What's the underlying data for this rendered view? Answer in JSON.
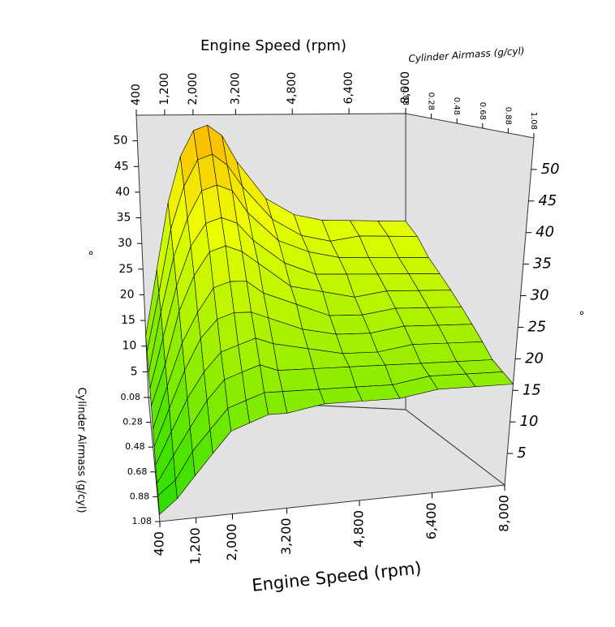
{
  "chart_data": {
    "type": "surface",
    "x_label": "Engine Speed (rpm)",
    "y_label": "Cylinder Airmass (g/cyl)",
    "z_label": "°",
    "x": [
      400,
      800,
      1200,
      1600,
      2000,
      2400,
      2800,
      3200,
      4000,
      4800,
      5600,
      6400,
      7200,
      8000
    ],
    "y": [
      0.08,
      0.18,
      0.28,
      0.38,
      0.48,
      0.58,
      0.68,
      0.78,
      0.88,
      0.98,
      1.08
    ],
    "values": [
      [
        12,
        25,
        38,
        47,
        52,
        53,
        51,
        46,
        39,
        36,
        35,
        35,
        35,
        35
      ],
      [
        11,
        22,
        34,
        42,
        47,
        48,
        46,
        42,
        36,
        33,
        32,
        33,
        33,
        33
      ],
      [
        9,
        20,
        30,
        37,
        42,
        43,
        42,
        38,
        33,
        31,
        30,
        30,
        30,
        30
      ],
      [
        8,
        17,
        26,
        33,
        37,
        38,
        37,
        34,
        30,
        28,
        28,
        28,
        28,
        28
      ],
      [
        7,
        14,
        23,
        29,
        33,
        34,
        33,
        31,
        27,
        26,
        25,
        26,
        26,
        26
      ],
      [
        5,
        12,
        19,
        24,
        28,
        29,
        29,
        27,
        25,
        23,
        23,
        24,
        24,
        24
      ],
      [
        4,
        10,
        16,
        21,
        24,
        25,
        25,
        24,
        22,
        21,
        21,
        22,
        22,
        22
      ],
      [
        3,
        8,
        13,
        17,
        20,
        21,
        22,
        21,
        20,
        19,
        19,
        20,
        20,
        20
      ],
      [
        2,
        6,
        10,
        14,
        17,
        18,
        19,
        18,
        18,
        18,
        18,
        18,
        18,
        18
      ],
      [
        2,
        4,
        8,
        11,
        14,
        15,
        16,
        16,
        16,
        16,
        16,
        17,
        17,
        17
      ],
      [
        1,
        3,
        6,
        9,
        12,
        13,
        14,
        14,
        15,
        15,
        15,
        16,
        16,
        16
      ]
    ],
    "xlim": [
      400,
      8000
    ],
    "xticks": [
      400,
      {
        "value": 1200,
        "label": "1,200"
      },
      {
        "value": 2000,
        "label": "2,000"
      },
      {
        "value": 3200,
        "label": "3,200"
      },
      {
        "value": 4800,
        "label": "4,800"
      },
      {
        "value": 6400,
        "label": "6,400"
      },
      {
        "value": 8000,
        "label": "8,000"
      }
    ],
    "ylim": [
      0.08,
      1.08
    ],
    "yticks": [
      0.08,
      0.28,
      0.48,
      0.68,
      0.88,
      1.08
    ],
    "zlim": [
      0,
      55
    ],
    "zticks": [
      5,
      10,
      15,
      20,
      25,
      30,
      35,
      40,
      45,
      50
    ],
    "colorscale": [
      "#22dd00",
      "#99ee00",
      "#eeff00",
      "#ffaa00"
    ]
  }
}
